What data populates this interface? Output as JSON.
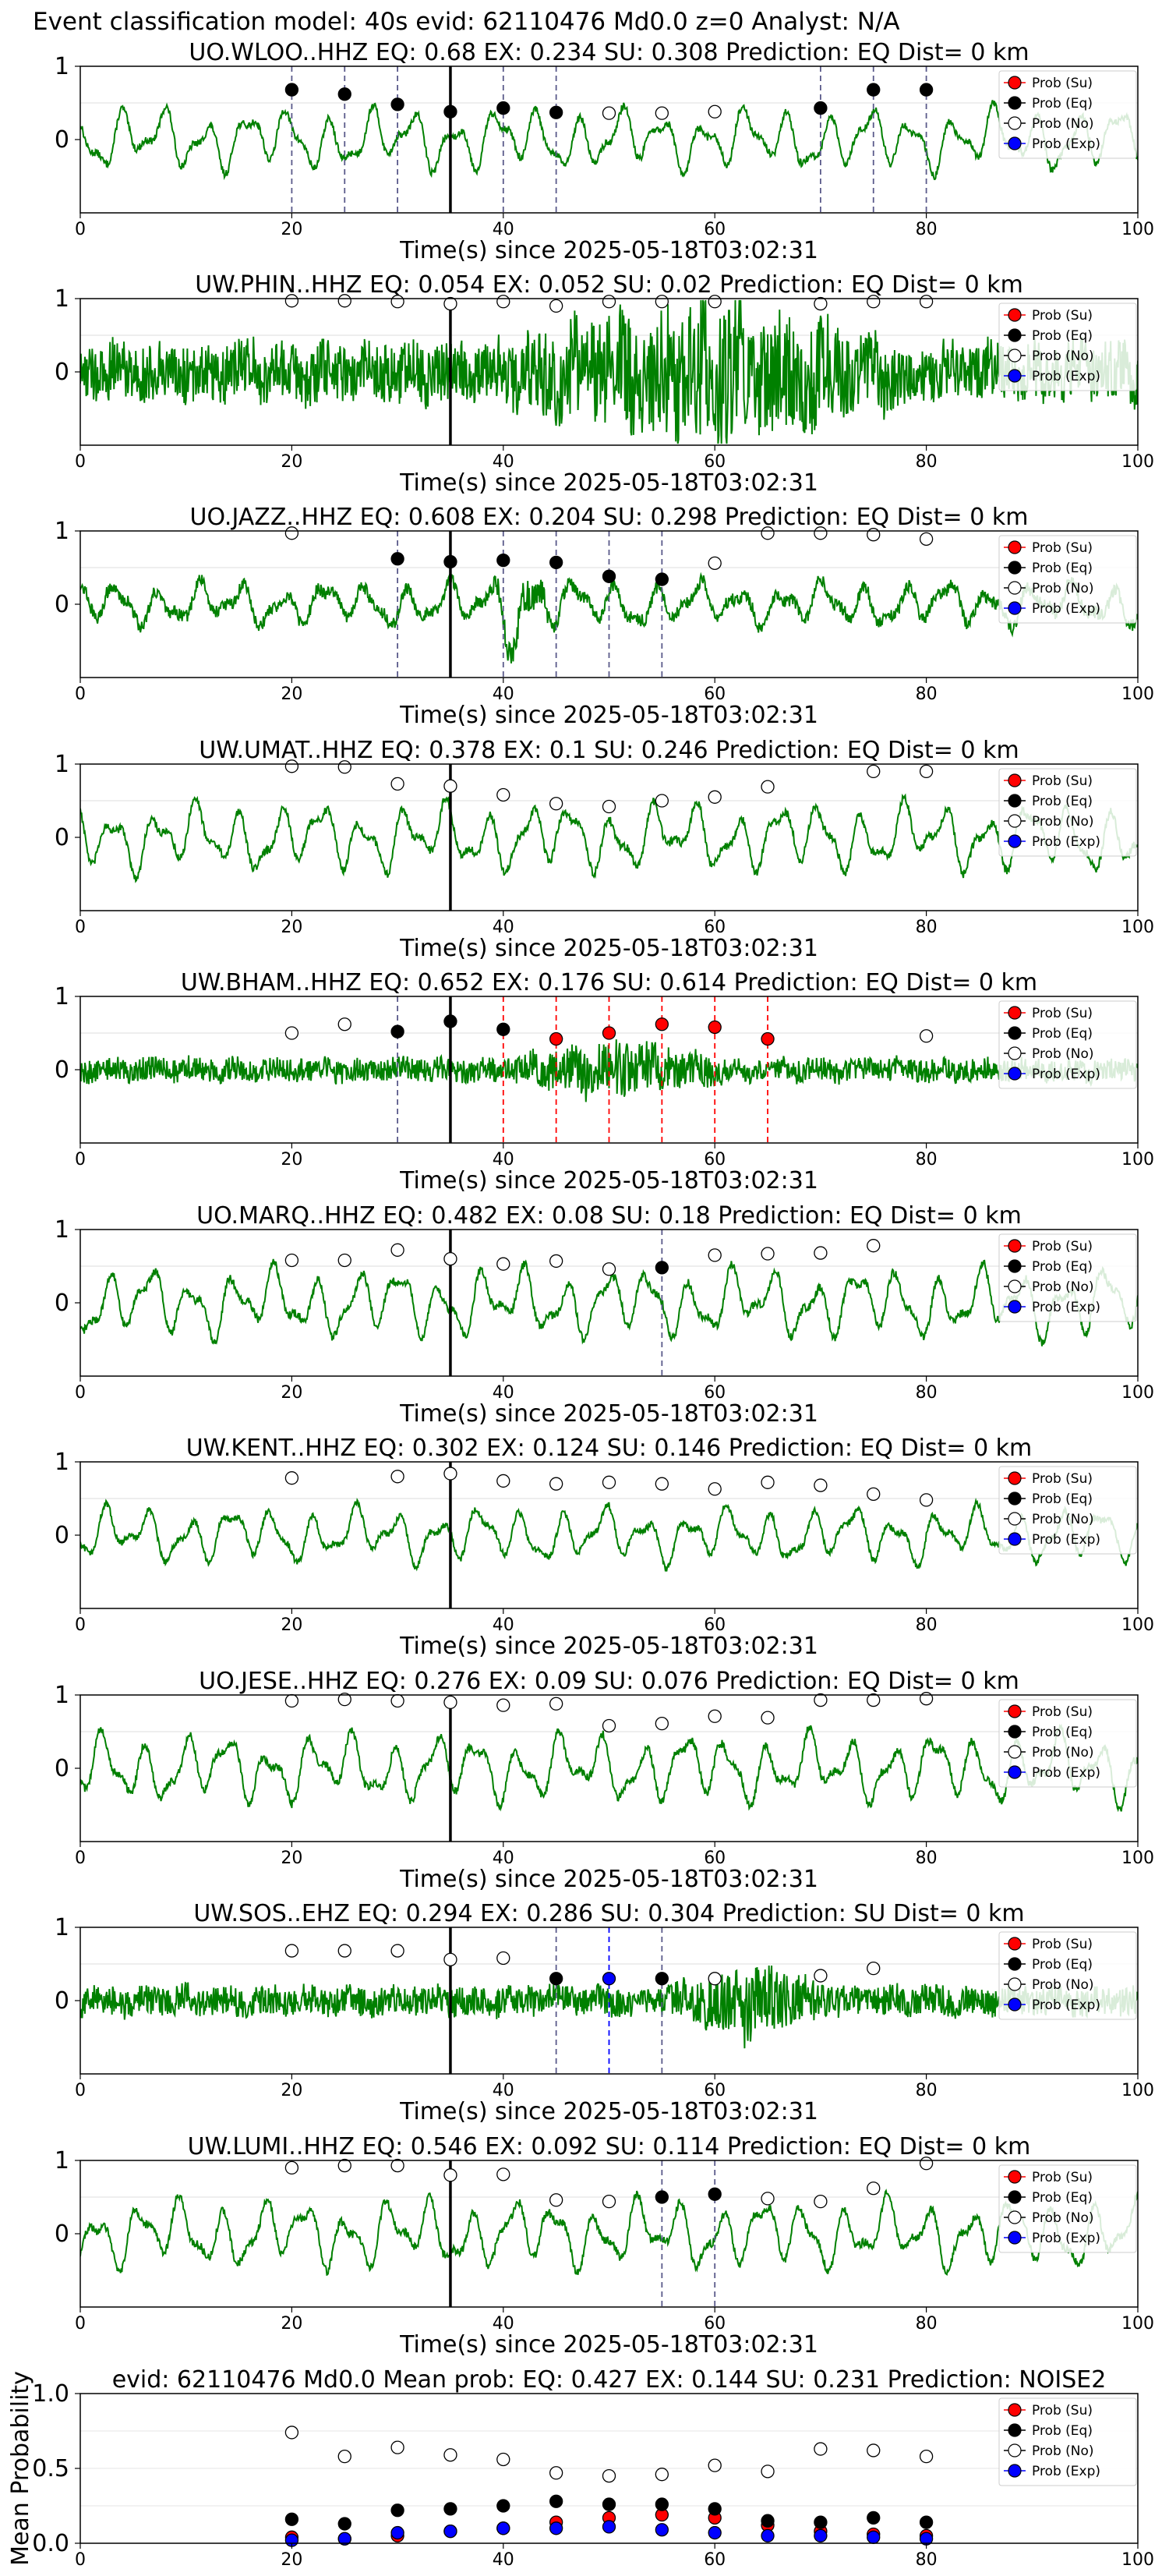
{
  "suptitle": "Event classification model: 40s evid: 62110476 Md0.0 z=0 Analyst: N/A",
  "legend_labels": [
    "Prob (Su)",
    "Prob (Eq)",
    "Prob (No)",
    "Prob (Exp)"
  ],
  "colors": {
    "trace": "#008000",
    "su": "#ff0000",
    "eq": "#000000",
    "no": "#ffffff",
    "exp": "#0000ff",
    "vline_eq": "#5a5a8a",
    "vline_su": "#ff0000"
  },
  "chart_data": [
    {
      "type": "line",
      "panel": "station",
      "title": "UO.WLOO..HHZ   EQ: 0.68  EX: 0.234  SU: 0.308   Prediction: EQ    Dist= 0 km",
      "xlabel": "Time(s) since 2025-05-18T03:02:31",
      "xlim": [
        0,
        100
      ],
      "ylim": [
        -1,
        1
      ],
      "xticks": [
        0,
        20,
        40,
        60,
        80,
        100
      ],
      "yticks": [
        0,
        1
      ],
      "pick_time": 35,
      "trace_style": "smooth",
      "trace_amp": 0.45,
      "burst": null,
      "points": [
        {
          "t": 20,
          "y": 0.68,
          "c": "eq"
        },
        {
          "t": 25,
          "y": 0.62,
          "c": "eq"
        },
        {
          "t": 30,
          "y": 0.48,
          "c": "eq"
        },
        {
          "t": 35,
          "y": 0.38,
          "c": "eq"
        },
        {
          "t": 40,
          "y": 0.43,
          "c": "eq"
        },
        {
          "t": 45,
          "y": 0.37,
          "c": "eq"
        },
        {
          "t": 50,
          "y": 0.36,
          "c": "no"
        },
        {
          "t": 55,
          "y": 0.36,
          "c": "no"
        },
        {
          "t": 60,
          "y": 0.38,
          "c": "no"
        },
        {
          "t": 70,
          "y": 0.43,
          "c": "eq"
        },
        {
          "t": 75,
          "y": 0.68,
          "c": "eq"
        },
        {
          "t": 80,
          "y": 0.68,
          "c": "eq"
        }
      ],
      "vlines": [
        {
          "t": 20,
          "c": "eq"
        },
        {
          "t": 25,
          "c": "eq"
        },
        {
          "t": 30,
          "c": "eq"
        },
        {
          "t": 40,
          "c": "eq"
        },
        {
          "t": 45,
          "c": "eq"
        },
        {
          "t": 70,
          "c": "eq"
        },
        {
          "t": 75,
          "c": "eq"
        },
        {
          "t": 80,
          "c": "eq"
        }
      ]
    },
    {
      "type": "line",
      "panel": "station",
      "title": "UW.PHIN..HHZ   EQ: 0.054  EX: 0.052  SU: 0.02   Prediction: EQ    Dist= 0 km",
      "xlabel": "Time(s) since 2025-05-18T03:02:31",
      "xlim": [
        0,
        100
      ],
      "ylim": [
        -1,
        1
      ],
      "xticks": [
        0,
        20,
        40,
        60,
        80,
        100
      ],
      "yticks": [
        0,
        1
      ],
      "pick_time": 35,
      "trace_style": "noisy",
      "trace_amp": 0.5,
      "burst": [
        38,
        80
      ],
      "points": [
        {
          "t": 20,
          "y": 0.97,
          "c": "no"
        },
        {
          "t": 25,
          "y": 0.97,
          "c": "no"
        },
        {
          "t": 30,
          "y": 0.96,
          "c": "no"
        },
        {
          "t": 35,
          "y": 0.93,
          "c": "no"
        },
        {
          "t": 40,
          "y": 0.96,
          "c": "no"
        },
        {
          "t": 45,
          "y": 0.9,
          "c": "no"
        },
        {
          "t": 50,
          "y": 0.96,
          "c": "no"
        },
        {
          "t": 55,
          "y": 0.96,
          "c": "no"
        },
        {
          "t": 60,
          "y": 0.96,
          "c": "no"
        },
        {
          "t": 70,
          "y": 0.93,
          "c": "no"
        },
        {
          "t": 75,
          "y": 0.96,
          "c": "no"
        },
        {
          "t": 80,
          "y": 0.96,
          "c": "no"
        }
      ],
      "vlines": []
    },
    {
      "type": "line",
      "panel": "station",
      "title": "UO.JAZZ..HHZ   EQ: 0.608  EX: 0.204  SU: 0.298   Prediction: EQ    Dist= 0 km",
      "xlabel": "Time(s) since 2025-05-18T03:02:31",
      "xlim": [
        0,
        100
      ],
      "ylim": [
        -1,
        1
      ],
      "xticks": [
        0,
        20,
        40,
        60,
        80,
        100
      ],
      "yticks": [
        0,
        1
      ],
      "pick_time": 35,
      "trace_style": "mixed",
      "trace_amp": 0.35,
      "burst": [
        38,
        46
      ],
      "points": [
        {
          "t": 20,
          "y": 0.97,
          "c": "no"
        },
        {
          "t": 30,
          "y": 0.62,
          "c": "eq"
        },
        {
          "t": 35,
          "y": 0.58,
          "c": "eq"
        },
        {
          "t": 40,
          "y": 0.6,
          "c": "eq"
        },
        {
          "t": 45,
          "y": 0.57,
          "c": "eq"
        },
        {
          "t": 50,
          "y": 0.38,
          "c": "eq"
        },
        {
          "t": 55,
          "y": 0.34,
          "c": "eq"
        },
        {
          "t": 60,
          "y": 0.56,
          "c": "no"
        },
        {
          "t": 65,
          "y": 0.97,
          "c": "no"
        },
        {
          "t": 70,
          "y": 0.97,
          "c": "no"
        },
        {
          "t": 75,
          "y": 0.95,
          "c": "no"
        },
        {
          "t": 80,
          "y": 0.89,
          "c": "no"
        }
      ],
      "vlines": [
        {
          "t": 30,
          "c": "eq"
        },
        {
          "t": 40,
          "c": "eq"
        },
        {
          "t": 45,
          "c": "eq"
        },
        {
          "t": 50,
          "c": "eq"
        },
        {
          "t": 55,
          "c": "eq"
        }
      ]
    },
    {
      "type": "line",
      "panel": "station",
      "title": "UW.UMAT..HHZ   EQ: 0.378  EX: 0.1  SU: 0.246   Prediction: EQ    Dist= 0 km",
      "xlabel": "Time(s) since 2025-05-18T03:02:31",
      "xlim": [
        0,
        100
      ],
      "ylim": [
        -1,
        1
      ],
      "xticks": [
        0,
        20,
        40,
        60,
        80,
        100
      ],
      "yticks": [
        0,
        1
      ],
      "pick_time": 35,
      "trace_style": "smooth",
      "trace_amp": 0.5,
      "burst": null,
      "points": [
        {
          "t": 20,
          "y": 0.97,
          "c": "no"
        },
        {
          "t": 25,
          "y": 0.96,
          "c": "no"
        },
        {
          "t": 30,
          "y": 0.73,
          "c": "no"
        },
        {
          "t": 35,
          "y": 0.7,
          "c": "no"
        },
        {
          "t": 40,
          "y": 0.58,
          "c": "no"
        },
        {
          "t": 45,
          "y": 0.46,
          "c": "no"
        },
        {
          "t": 50,
          "y": 0.42,
          "c": "no"
        },
        {
          "t": 55,
          "y": 0.5,
          "c": "no"
        },
        {
          "t": 60,
          "y": 0.55,
          "c": "no"
        },
        {
          "t": 65,
          "y": 0.69,
          "c": "no"
        },
        {
          "t": 75,
          "y": 0.9,
          "c": "no"
        },
        {
          "t": 80,
          "y": 0.9,
          "c": "no"
        }
      ],
      "vlines": []
    },
    {
      "type": "line",
      "panel": "station",
      "title": "UW.BHAM..HHZ   EQ: 0.652  EX: 0.176  SU: 0.614   Prediction: EQ    Dist= 0 km",
      "xlabel": "Time(s) since 2025-05-18T03:02:31",
      "xlim": [
        0,
        100
      ],
      "ylim": [
        -1,
        1
      ],
      "xticks": [
        0,
        20,
        40,
        60,
        80,
        100
      ],
      "yticks": [
        0,
        1
      ],
      "pick_time": 35,
      "trace_style": "noisy",
      "trace_amp": 0.2,
      "burst": [
        40,
        62
      ],
      "points": [
        {
          "t": 20,
          "y": 0.5,
          "c": "no"
        },
        {
          "t": 25,
          "y": 0.62,
          "c": "no"
        },
        {
          "t": 30,
          "y": 0.52,
          "c": "eq"
        },
        {
          "t": 35,
          "y": 0.66,
          "c": "eq"
        },
        {
          "t": 40,
          "y": 0.55,
          "c": "eq"
        },
        {
          "t": 45,
          "y": 0.42,
          "c": "su"
        },
        {
          "t": 50,
          "y": 0.5,
          "c": "su"
        },
        {
          "t": 55,
          "y": 0.62,
          "c": "su"
        },
        {
          "t": 60,
          "y": 0.58,
          "c": "su"
        },
        {
          "t": 65,
          "y": 0.42,
          "c": "su"
        },
        {
          "t": 80,
          "y": 0.46,
          "c": "no"
        }
      ],
      "vlines": [
        {
          "t": 30,
          "c": "eq"
        },
        {
          "t": 40,
          "c": "su"
        },
        {
          "t": 45,
          "c": "su"
        },
        {
          "t": 50,
          "c": "su"
        },
        {
          "t": 55,
          "c": "su"
        },
        {
          "t": 60,
          "c": "su"
        },
        {
          "t": 65,
          "c": "su"
        }
      ]
    },
    {
      "type": "line",
      "panel": "station",
      "title": "UO.MARQ..HHZ   EQ: 0.482  EX: 0.08  SU: 0.18   Prediction: EQ    Dist= 0 km",
      "xlabel": "Time(s) since 2025-05-18T03:02:31",
      "xlim": [
        0,
        100
      ],
      "ylim": [
        -1,
        1
      ],
      "xticks": [
        0,
        20,
        40,
        60,
        80,
        100
      ],
      "yticks": [
        0,
        1
      ],
      "pick_time": 35,
      "trace_style": "smooth",
      "trace_amp": 0.5,
      "burst": null,
      "points": [
        {
          "t": 20,
          "y": 0.58,
          "c": "no"
        },
        {
          "t": 25,
          "y": 0.58,
          "c": "no"
        },
        {
          "t": 30,
          "y": 0.72,
          "c": "no"
        },
        {
          "t": 35,
          "y": 0.6,
          "c": "no"
        },
        {
          "t": 40,
          "y": 0.53,
          "c": "no"
        },
        {
          "t": 45,
          "y": 0.57,
          "c": "no"
        },
        {
          "t": 50,
          "y": 0.46,
          "c": "no"
        },
        {
          "t": 55,
          "y": 0.48,
          "c": "eq"
        },
        {
          "t": 60,
          "y": 0.65,
          "c": "no"
        },
        {
          "t": 65,
          "y": 0.67,
          "c": "no"
        },
        {
          "t": 70,
          "y": 0.68,
          "c": "no"
        },
        {
          "t": 75,
          "y": 0.78,
          "c": "no"
        }
      ],
      "vlines": [
        {
          "t": 55,
          "c": "eq"
        }
      ]
    },
    {
      "type": "line",
      "panel": "station",
      "title": "UW.KENT..HHZ   EQ: 0.302  EX: 0.124  SU: 0.146   Prediction: EQ    Dist= 0 km",
      "xlabel": "Time(s) since 2025-05-18T03:02:31",
      "xlim": [
        0,
        100
      ],
      "ylim": [
        -1,
        1
      ],
      "xticks": [
        0,
        20,
        40,
        60,
        80,
        100
      ],
      "yticks": [
        0,
        1
      ],
      "pick_time": 35,
      "trace_style": "smooth",
      "trace_amp": 0.4,
      "burst": null,
      "points": [
        {
          "t": 20,
          "y": 0.78,
          "c": "no"
        },
        {
          "t": 30,
          "y": 0.8,
          "c": "no"
        },
        {
          "t": 35,
          "y": 0.84,
          "c": "no"
        },
        {
          "t": 40,
          "y": 0.74,
          "c": "no"
        },
        {
          "t": 45,
          "y": 0.7,
          "c": "no"
        },
        {
          "t": 50,
          "y": 0.72,
          "c": "no"
        },
        {
          "t": 55,
          "y": 0.7,
          "c": "no"
        },
        {
          "t": 60,
          "y": 0.63,
          "c": "no"
        },
        {
          "t": 65,
          "y": 0.72,
          "c": "no"
        },
        {
          "t": 70,
          "y": 0.68,
          "c": "no"
        },
        {
          "t": 75,
          "y": 0.56,
          "c": "no"
        },
        {
          "t": 80,
          "y": 0.48,
          "c": "no"
        }
      ],
      "vlines": []
    },
    {
      "type": "line",
      "panel": "station",
      "title": "UO.JESE..HHZ   EQ: 0.276  EX: 0.09  SU: 0.076   Prediction: EQ    Dist= 0 km",
      "xlabel": "Time(s) since 2025-05-18T03:02:31",
      "xlim": [
        0,
        100
      ],
      "ylim": [
        -1,
        1
      ],
      "xticks": [
        0,
        20,
        40,
        60,
        80,
        100
      ],
      "yticks": [
        0,
        1
      ],
      "pick_time": 35,
      "trace_style": "smooth",
      "trace_amp": 0.5,
      "burst": null,
      "points": [
        {
          "t": 20,
          "y": 0.92,
          "c": "no"
        },
        {
          "t": 25,
          "y": 0.94,
          "c": "no"
        },
        {
          "t": 30,
          "y": 0.92,
          "c": "no"
        },
        {
          "t": 35,
          "y": 0.9,
          "c": "no"
        },
        {
          "t": 40,
          "y": 0.86,
          "c": "no"
        },
        {
          "t": 45,
          "y": 0.88,
          "c": "no"
        },
        {
          "t": 50,
          "y": 0.58,
          "c": "no"
        },
        {
          "t": 55,
          "y": 0.61,
          "c": "no"
        },
        {
          "t": 60,
          "y": 0.71,
          "c": "no"
        },
        {
          "t": 65,
          "y": 0.69,
          "c": "no"
        },
        {
          "t": 70,
          "y": 0.93,
          "c": "no"
        },
        {
          "t": 75,
          "y": 0.93,
          "c": "no"
        },
        {
          "t": 80,
          "y": 0.95,
          "c": "no"
        }
      ],
      "vlines": []
    },
    {
      "type": "line",
      "panel": "station",
      "title": "UW.SOS..EHZ   EQ: 0.294  EX: 0.286  SU: 0.304   Prediction: SU    Dist= 0 km",
      "xlabel": "Time(s) since 2025-05-18T03:02:31",
      "xlim": [
        0,
        100
      ],
      "ylim": [
        -1,
        1
      ],
      "xticks": [
        0,
        20,
        40,
        60,
        80,
        100
      ],
      "yticks": [
        0,
        1
      ],
      "pick_time": 35,
      "trace_style": "noisy",
      "trace_amp": 0.25,
      "burst": [
        55,
        72
      ],
      "points": [
        {
          "t": 20,
          "y": 0.68,
          "c": "no"
        },
        {
          "t": 25,
          "y": 0.68,
          "c": "no"
        },
        {
          "t": 30,
          "y": 0.68,
          "c": "no"
        },
        {
          "t": 35,
          "y": 0.56,
          "c": "no"
        },
        {
          "t": 40,
          "y": 0.58,
          "c": "no"
        },
        {
          "t": 45,
          "y": 0.3,
          "c": "eq"
        },
        {
          "t": 50,
          "y": 0.3,
          "c": "exp"
        },
        {
          "t": 55,
          "y": 0.3,
          "c": "eq"
        },
        {
          "t": 60,
          "y": 0.3,
          "c": "no"
        },
        {
          "t": 70,
          "y": 0.34,
          "c": "no"
        },
        {
          "t": 75,
          "y": 0.44,
          "c": "no"
        }
      ],
      "vlines": [
        {
          "t": 45,
          "c": "eq"
        },
        {
          "t": 50,
          "c": "exp"
        },
        {
          "t": 55,
          "c": "eq"
        }
      ]
    },
    {
      "type": "line",
      "panel": "station",
      "title": "UW.LUMI..HHZ   EQ: 0.546  EX: 0.092  SU: 0.114   Prediction: EQ    Dist= 0 km",
      "xlabel": "Time(s) since 2025-05-18T03:02:31",
      "xlim": [
        0,
        100
      ],
      "ylim": [
        -1,
        1
      ],
      "xticks": [
        0,
        20,
        40,
        60,
        80,
        100
      ],
      "yticks": [
        0,
        1
      ],
      "pick_time": 35,
      "trace_style": "smooth",
      "trace_amp": 0.5,
      "burst": null,
      "points": [
        {
          "t": 20,
          "y": 0.9,
          "c": "no"
        },
        {
          "t": 25,
          "y": 0.93,
          "c": "no"
        },
        {
          "t": 30,
          "y": 0.93,
          "c": "no"
        },
        {
          "t": 35,
          "y": 0.8,
          "c": "no"
        },
        {
          "t": 40,
          "y": 0.81,
          "c": "no"
        },
        {
          "t": 45,
          "y": 0.46,
          "c": "no"
        },
        {
          "t": 50,
          "y": 0.44,
          "c": "no"
        },
        {
          "t": 55,
          "y": 0.5,
          "c": "eq"
        },
        {
          "t": 60,
          "y": 0.54,
          "c": "eq"
        },
        {
          "t": 65,
          "y": 0.48,
          "c": "no"
        },
        {
          "t": 70,
          "y": 0.44,
          "c": "no"
        },
        {
          "t": 75,
          "y": 0.62,
          "c": "no"
        },
        {
          "t": 80,
          "y": 0.96,
          "c": "no"
        }
      ],
      "vlines": [
        {
          "t": 55,
          "c": "eq"
        },
        {
          "t": 60,
          "c": "eq"
        }
      ]
    },
    {
      "type": "scatter",
      "panel": "summary",
      "title": "evid: 62110476  Md0.0   Mean prob:   EQ: 0.427  EX: 0.144  SU: 0.231   Prediction: NOISE2",
      "ylabel": "Mean Probability",
      "xlim": [
        0,
        100
      ],
      "ylim": [
        0,
        1
      ],
      "xticks": [
        0,
        20,
        40,
        60,
        80,
        100
      ],
      "yticks": [
        0.0,
        0.5,
        1.0
      ],
      "x": [
        20,
        25,
        30,
        35,
        40,
        45,
        50,
        55,
        60,
        65,
        70,
        75,
        80
      ],
      "series": [
        {
          "name": "Prob (Su)",
          "c": "su",
          "values": [
            0.04,
            0.03,
            0.05,
            0.08,
            0.1,
            0.14,
            0.17,
            0.19,
            0.17,
            0.12,
            0.08,
            0.06,
            0.05
          ]
        },
        {
          "name": "Prob (Eq)",
          "c": "eq",
          "values": [
            0.16,
            0.13,
            0.22,
            0.23,
            0.25,
            0.28,
            0.26,
            0.26,
            0.23,
            0.15,
            0.14,
            0.17,
            0.14
          ]
        },
        {
          "name": "Prob (No)",
          "c": "no",
          "values": [
            0.74,
            0.58,
            0.64,
            0.59,
            0.56,
            0.47,
            0.45,
            0.46,
            0.52,
            0.48,
            0.63,
            0.62,
            0.58
          ]
        },
        {
          "name": "Prob (Exp)",
          "c": "exp",
          "values": [
            0.02,
            0.03,
            0.07,
            0.08,
            0.1,
            0.1,
            0.11,
            0.09,
            0.07,
            0.05,
            0.05,
            0.04,
            0.03
          ]
        }
      ]
    }
  ]
}
